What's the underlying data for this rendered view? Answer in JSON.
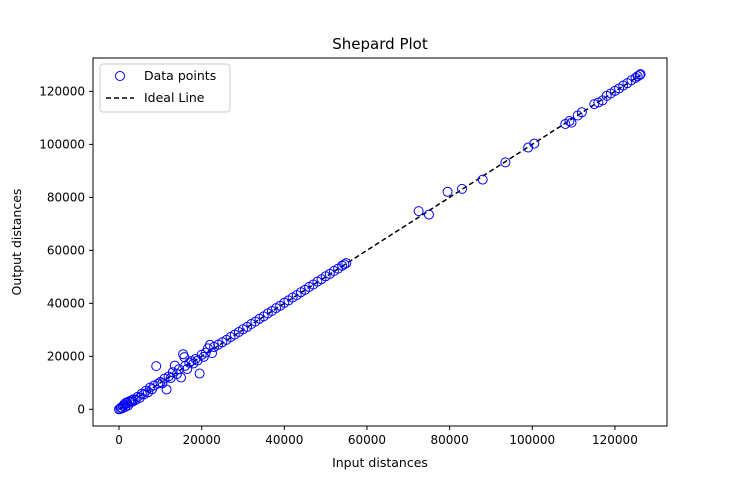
{
  "chart_data": {
    "type": "scatter",
    "title": "Shepard Plot",
    "xlabel": "Input distances",
    "ylabel": "Output distances",
    "xlim": [
      -6300,
      132600
    ],
    "ylim": [
      -6300,
      132600
    ],
    "xticks": [
      0,
      20000,
      40000,
      60000,
      80000,
      100000,
      120000
    ],
    "yticks": [
      0,
      20000,
      40000,
      60000,
      80000,
      100000,
      120000
    ],
    "xtick_labels": [
      "0",
      "20000",
      "40000",
      "60000",
      "80000",
      "100000",
      "120000"
    ],
    "ytick_labels": [
      "0",
      "20000",
      "40000",
      "60000",
      "80000",
      "100000",
      "120000"
    ],
    "grid": false,
    "legend": {
      "placement": "top-left"
    },
    "colors": {
      "points": "#0000ff",
      "ideal_line": "#000000"
    },
    "series": [
      {
        "name": "Data points",
        "marker": "open-circle",
        "points": [
          [
            0,
            0
          ],
          [
            300,
            200
          ],
          [
            500,
            700
          ],
          [
            800,
            400
          ],
          [
            1000,
            1200
          ],
          [
            1200,
            1800
          ],
          [
            1500,
            900
          ],
          [
            1700,
            2500
          ],
          [
            2000,
            2300
          ],
          [
            2200,
            1500
          ],
          [
            2500,
            3000
          ],
          [
            2800,
            2600
          ],
          [
            3000,
            3400
          ],
          [
            3300,
            2900
          ],
          [
            3500,
            3800
          ],
          [
            4000,
            3500
          ],
          [
            4500,
            4700
          ],
          [
            5000,
            4300
          ],
          [
            5500,
            5900
          ],
          [
            6000,
            5600
          ],
          [
            6500,
            7000
          ],
          [
            7000,
            6400
          ],
          [
            7500,
            8200
          ],
          [
            8000,
            7600
          ],
          [
            8500,
            9000
          ],
          [
            9000,
            16300
          ],
          [
            9500,
            9700
          ],
          [
            10000,
            10300
          ],
          [
            10500,
            9800
          ],
          [
            11000,
            11600
          ],
          [
            11500,
            7500
          ],
          [
            12000,
            12400
          ],
          [
            12500,
            11800
          ],
          [
            13000,
            14000
          ],
          [
            13500,
            16500
          ],
          [
            14000,
            13300
          ],
          [
            14500,
            15100
          ],
          [
            15000,
            12000
          ],
          [
            15500,
            20800
          ],
          [
            15800,
            19700
          ],
          [
            16000,
            16400
          ],
          [
            16500,
            15200
          ],
          [
            17000,
            17600
          ],
          [
            17500,
            18200
          ],
          [
            18000,
            17300
          ],
          [
            18500,
            19000
          ],
          [
            19000,
            18400
          ],
          [
            19500,
            13500
          ],
          [
            20000,
            20600
          ],
          [
            20500,
            19800
          ],
          [
            21000,
            21400
          ],
          [
            21500,
            23000
          ],
          [
            22000,
            24300
          ],
          [
            22500,
            21200
          ],
          [
            23000,
            23500
          ],
          [
            24000,
            24400
          ],
          [
            25000,
            25300
          ],
          [
            26000,
            26200
          ],
          [
            27000,
            27300
          ],
          [
            28000,
            28200
          ],
          [
            29000,
            29200
          ],
          [
            30000,
            30200
          ],
          [
            31000,
            31100
          ],
          [
            32000,
            32200
          ],
          [
            33000,
            33100
          ],
          [
            34000,
            34200
          ],
          [
            35000,
            35100
          ],
          [
            36000,
            36200
          ],
          [
            37000,
            37100
          ],
          [
            38000,
            38200
          ],
          [
            39000,
            39100
          ],
          [
            40000,
            40200
          ],
          [
            41000,
            41100
          ],
          [
            42000,
            42200
          ],
          [
            43000,
            43100
          ],
          [
            44000,
            44200
          ],
          [
            45000,
            45100
          ],
          [
            46000,
            46200
          ],
          [
            47000,
            47100
          ],
          [
            48000,
            48200
          ],
          [
            49000,
            49100
          ],
          [
            50000,
            50200
          ],
          [
            51000,
            51100
          ],
          [
            52000,
            52200
          ],
          [
            53000,
            53100
          ],
          [
            54000,
            54200
          ],
          [
            54500,
            54700
          ],
          [
            55000,
            55200
          ],
          [
            72500,
            74800
          ],
          [
            75000,
            73500
          ],
          [
            79500,
            82100
          ],
          [
            83000,
            83200
          ],
          [
            88000,
            86700
          ],
          [
            93500,
            93200
          ],
          [
            99000,
            98800
          ],
          [
            100500,
            100300
          ],
          [
            108000,
            107700
          ],
          [
            109000,
            108800
          ],
          [
            109500,
            108200
          ],
          [
            111000,
            110900
          ],
          [
            112000,
            112100
          ],
          [
            115000,
            115200
          ],
          [
            116000,
            115800
          ],
          [
            117000,
            116600
          ],
          [
            118000,
            118300
          ],
          [
            119000,
            119200
          ],
          [
            120000,
            120200
          ],
          [
            121000,
            121100
          ],
          [
            122000,
            122200
          ],
          [
            123000,
            123100
          ],
          [
            124000,
            124200
          ],
          [
            125000,
            125100
          ],
          [
            125500,
            125700
          ],
          [
            126000,
            126200
          ],
          [
            126200,
            126500
          ]
        ]
      },
      {
        "name": "Ideal Line",
        "style": "dashed",
        "x": [
          0,
          126200
        ],
        "y": [
          0,
          126200
        ]
      }
    ]
  }
}
